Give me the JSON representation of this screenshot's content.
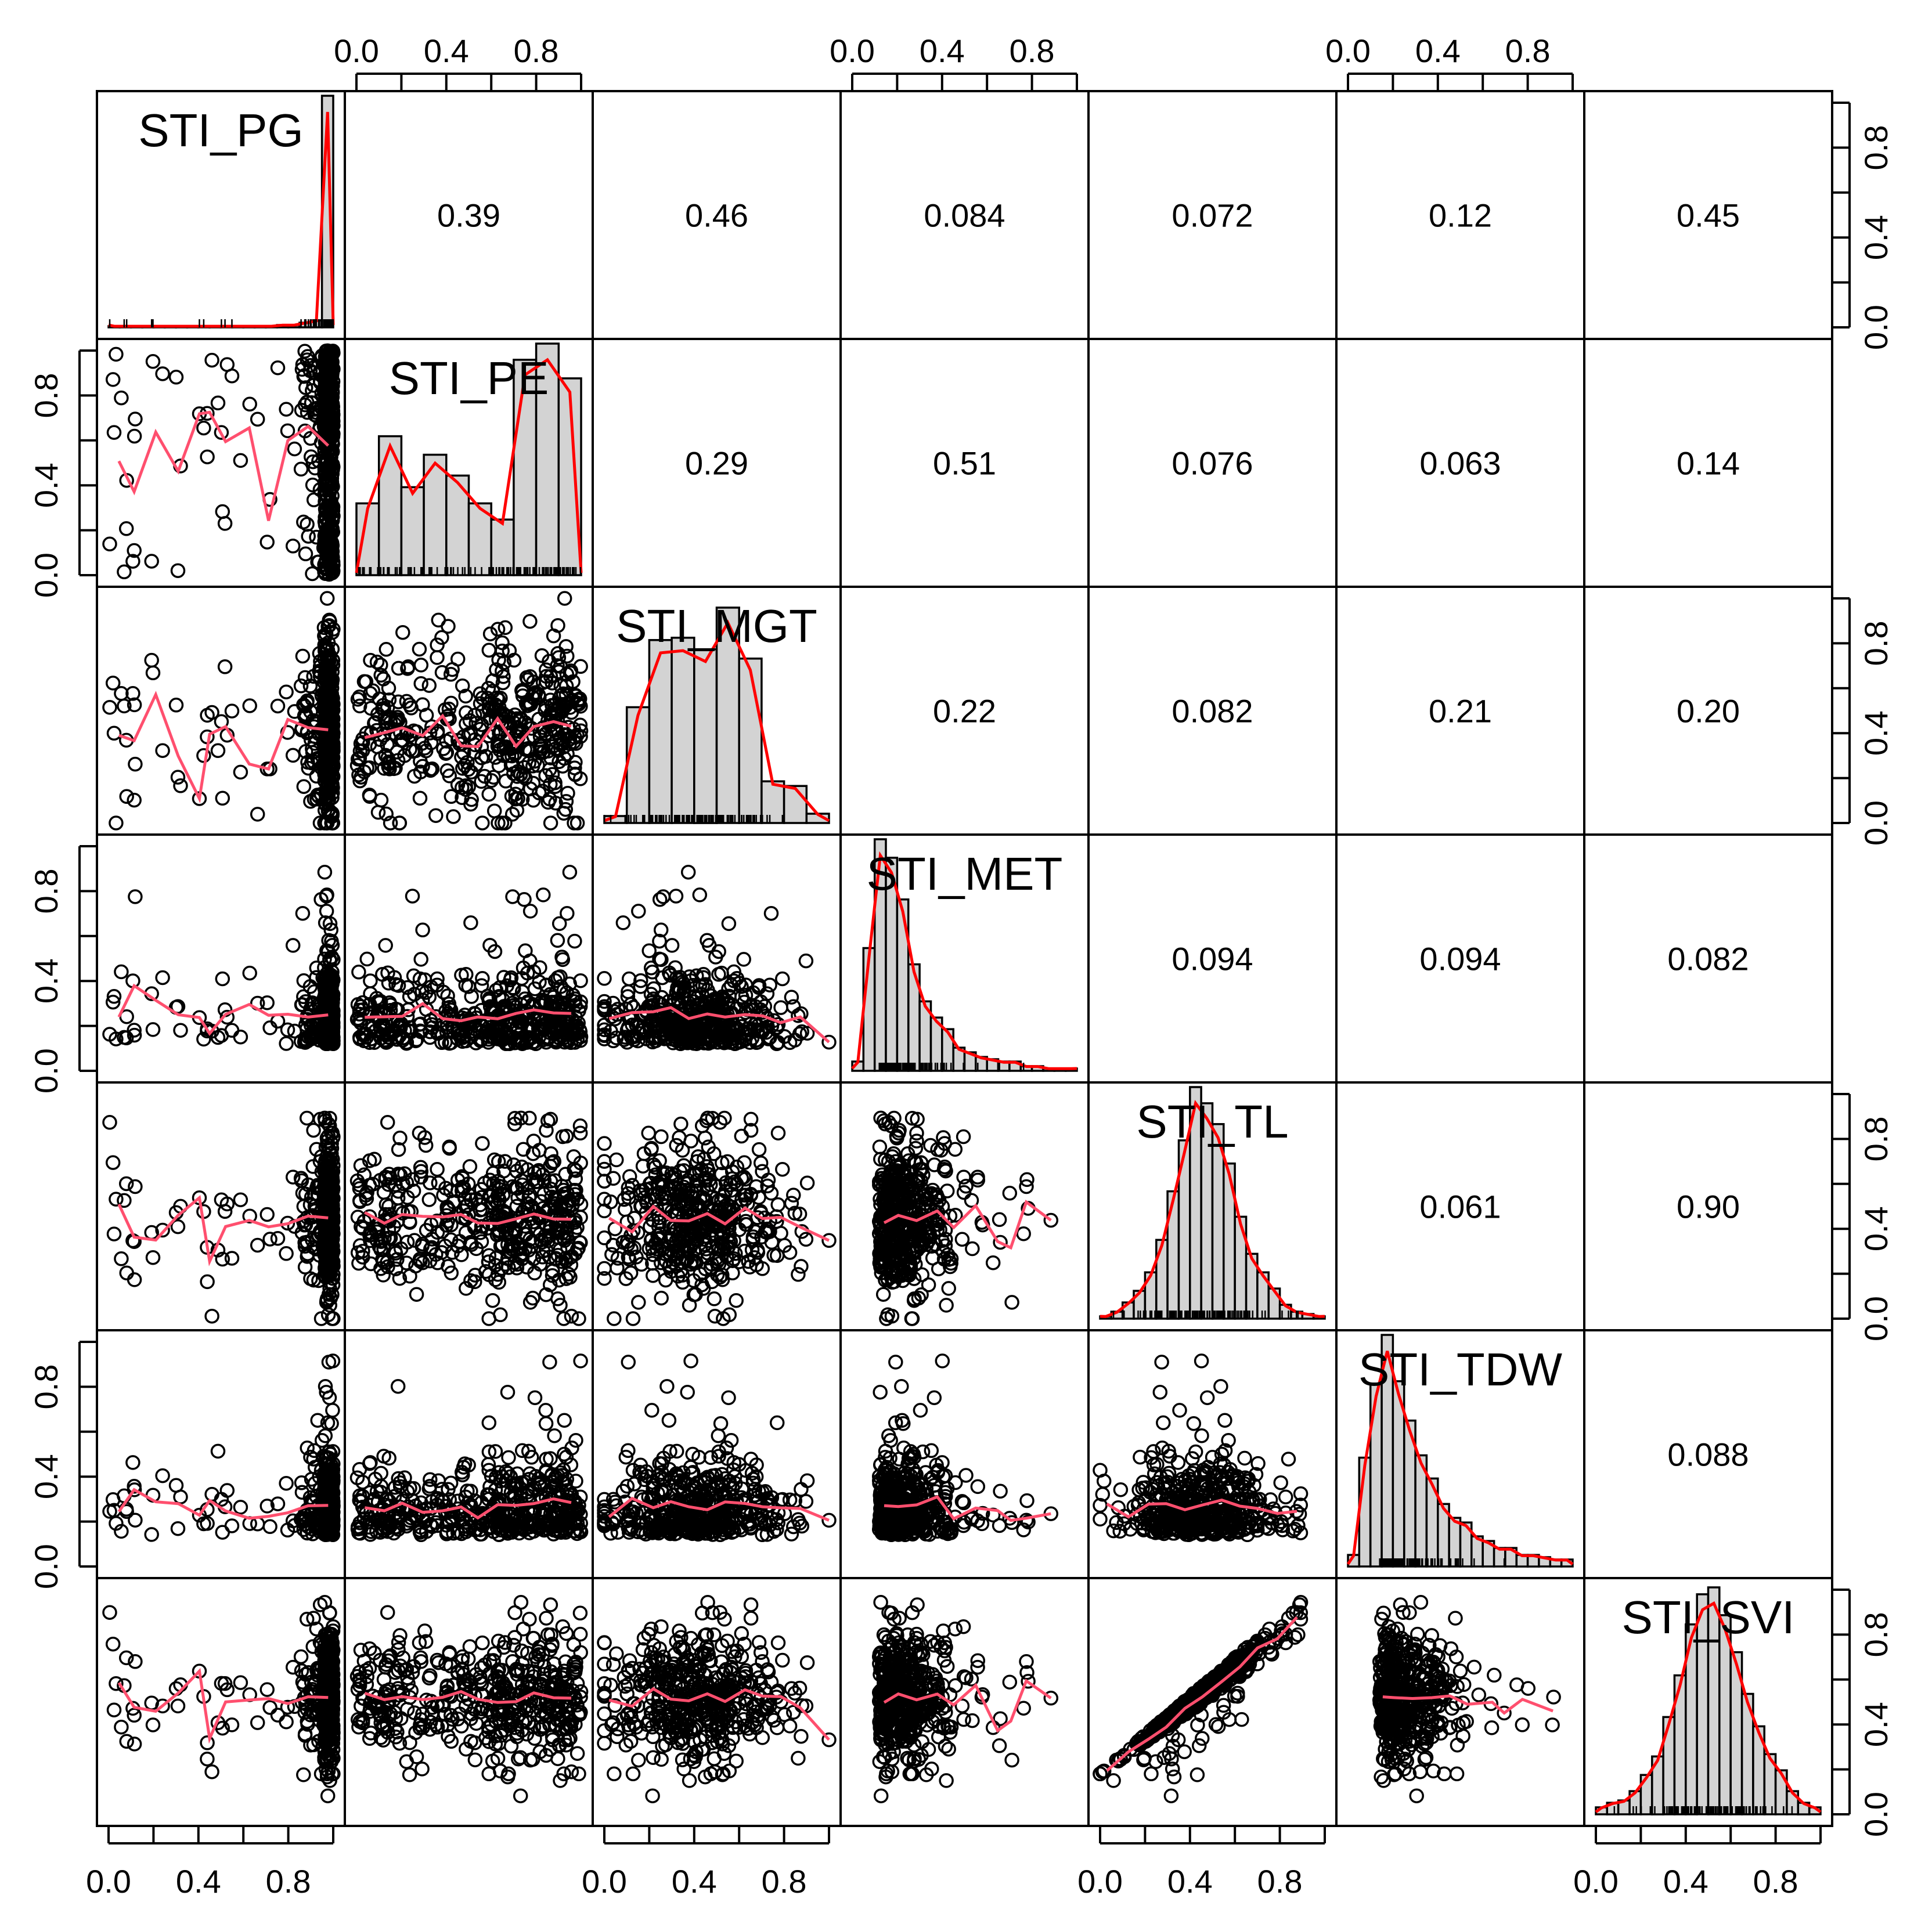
{
  "chart_data": {
    "type": "scatter",
    "title": "",
    "matrix_type": "pairs-panels",
    "variables": [
      "STI_PG",
      "STI_PE",
      "STI_MGT",
      "STI_MET",
      "STI_TL",
      "STI_TDW",
      "STI_SVI"
    ],
    "axis_range": [
      0.0,
      1.0
    ],
    "tick_values": [
      0.0,
      0.2,
      0.4,
      0.6,
      0.8,
      1.0
    ],
    "tick_labels": [
      "0.0",
      "0.4",
      "0.8"
    ],
    "correlations": [
      {
        "row": 0,
        "col": 1,
        "label": "0.39"
      },
      {
        "row": 0,
        "col": 2,
        "label": "0.46"
      },
      {
        "row": 0,
        "col": 3,
        "label": "0.084"
      },
      {
        "row": 0,
        "col": 4,
        "label": "0.072"
      },
      {
        "row": 0,
        "col": 5,
        "label": "0.12"
      },
      {
        "row": 0,
        "col": 6,
        "label": "0.45"
      },
      {
        "row": 1,
        "col": 2,
        "label": "0.29"
      },
      {
        "row": 1,
        "col": 3,
        "label": "0.51"
      },
      {
        "row": 1,
        "col": 4,
        "label": "0.076"
      },
      {
        "row": 1,
        "col": 5,
        "label": "0.063"
      },
      {
        "row": 1,
        "col": 6,
        "label": "0.14"
      },
      {
        "row": 2,
        "col": 3,
        "label": "0.22"
      },
      {
        "row": 2,
        "col": 4,
        "label": "0.082"
      },
      {
        "row": 2,
        "col": 5,
        "label": "0.21"
      },
      {
        "row": 2,
        "col": 6,
        "label": "0.20"
      },
      {
        "row": 3,
        "col": 4,
        "label": "0.094"
      },
      {
        "row": 3,
        "col": 5,
        "label": "0.094"
      },
      {
        "row": 3,
        "col": 6,
        "label": "0.082"
      },
      {
        "row": 4,
        "col": 5,
        "label": "0.061"
      },
      {
        "row": 4,
        "col": 6,
        "label": "0.90"
      },
      {
        "row": 5,
        "col": 6,
        "label": "0.088"
      }
    ],
    "histograms": [
      {
        "variable": "STI_PG",
        "bins": [
          0.0,
          0.05,
          0.1,
          0.15,
          0.2,
          0.25,
          0.3,
          0.35,
          0.4,
          0.45,
          0.5,
          0.55,
          0.6,
          0.65,
          0.7,
          0.75,
          0.8,
          0.85,
          0.9,
          0.95,
          1.0
        ],
        "heights": [
          0.005,
          0.005,
          0.005,
          0.005,
          0.005,
          0.005,
          0.005,
          0.005,
          0.005,
          0.005,
          0.005,
          0.005,
          0.005,
          0.005,
          0.005,
          0.01,
          0.01,
          0.02,
          0.03,
          1.0
        ]
      },
      {
        "variable": "STI_PE",
        "bins": [
          0.0,
          0.1,
          0.2,
          0.3,
          0.4,
          0.5,
          0.6,
          0.7,
          0.8,
          0.9,
          1.0
        ],
        "heights": [
          0.31,
          0.6,
          0.38,
          0.52,
          0.43,
          0.31,
          0.24,
          0.93,
          1.0,
          0.85
        ]
      },
      {
        "variable": "STI_MGT",
        "bins": [
          0.0,
          0.1,
          0.2,
          0.3,
          0.4,
          0.5,
          0.6,
          0.7,
          0.8,
          0.9,
          1.0
        ],
        "heights": [
          0.03,
          0.5,
          0.79,
          0.8,
          0.75,
          0.93,
          0.71,
          0.18,
          0.16,
          0.04
        ]
      },
      {
        "variable": "STI_MET",
        "bins": [
          0.0,
          0.05,
          0.1,
          0.15,
          0.2,
          0.25,
          0.3,
          0.35,
          0.4,
          0.45,
          0.5,
          0.55,
          0.6,
          0.65,
          0.7,
          0.75,
          0.8,
          0.85,
          0.9,
          0.95,
          1.0
        ],
        "heights": [
          0.04,
          0.53,
          1.0,
          0.92,
          0.74,
          0.46,
          0.3,
          0.23,
          0.18,
          0.1,
          0.08,
          0.06,
          0.05,
          0.04,
          0.04,
          0.02,
          0.02,
          0.01,
          0.01,
          0.01
        ]
      },
      {
        "variable": "STI_TL",
        "bins": [
          0.0,
          0.05,
          0.1,
          0.15,
          0.2,
          0.25,
          0.3,
          0.35,
          0.4,
          0.45,
          0.5,
          0.55,
          0.6,
          0.65,
          0.7,
          0.75,
          0.8,
          0.85,
          0.9,
          0.95,
          1.0
        ],
        "heights": [
          0.01,
          0.03,
          0.07,
          0.12,
          0.2,
          0.34,
          0.55,
          0.77,
          1.0,
          0.93,
          0.84,
          0.67,
          0.44,
          0.28,
          0.2,
          0.13,
          0.06,
          0.03,
          0.02,
          0.01
        ]
      },
      {
        "variable": "STI_TDW",
        "bins": [
          0.0,
          0.05,
          0.1,
          0.15,
          0.2,
          0.25,
          0.3,
          0.35,
          0.4,
          0.45,
          0.5,
          0.55,
          0.6,
          0.65,
          0.7,
          0.75,
          0.8,
          0.85,
          0.9,
          0.95,
          1.0
        ],
        "heights": [
          0.05,
          0.47,
          0.79,
          1.0,
          0.8,
          0.63,
          0.48,
          0.38,
          0.27,
          0.21,
          0.19,
          0.13,
          0.11,
          0.08,
          0.08,
          0.05,
          0.05,
          0.04,
          0.03,
          0.03
        ]
      },
      {
        "variable": "STI_SVI",
        "bins": [
          0.0,
          0.05,
          0.1,
          0.15,
          0.2,
          0.25,
          0.3,
          0.35,
          0.4,
          0.45,
          0.5,
          0.55,
          0.6,
          0.65,
          0.7,
          0.75,
          0.8,
          0.85,
          0.9,
          0.95,
          1.0
        ],
        "heights": [
          0.03,
          0.05,
          0.06,
          0.1,
          0.17,
          0.25,
          0.42,
          0.6,
          0.82,
          0.95,
          0.98,
          0.86,
          0.7,
          0.52,
          0.38,
          0.26,
          0.19,
          0.1,
          0.05,
          0.03
        ]
      }
    ]
  }
}
